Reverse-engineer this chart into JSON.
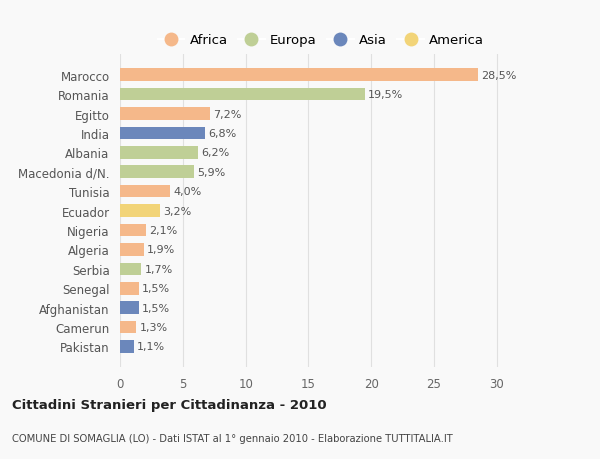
{
  "countries": [
    "Marocco",
    "Romania",
    "Egitto",
    "India",
    "Albania",
    "Macedonia d/N.",
    "Tunisia",
    "Ecuador",
    "Nigeria",
    "Algeria",
    "Serbia",
    "Senegal",
    "Afghanistan",
    "Camerun",
    "Pakistan"
  ],
  "values": [
    28.5,
    19.5,
    7.2,
    6.8,
    6.2,
    5.9,
    4.0,
    3.2,
    2.1,
    1.9,
    1.7,
    1.5,
    1.5,
    1.3,
    1.1
  ],
  "labels": [
    "28,5%",
    "19,5%",
    "7,2%",
    "6,8%",
    "6,2%",
    "5,9%",
    "4,0%",
    "3,2%",
    "2,1%",
    "1,9%",
    "1,7%",
    "1,5%",
    "1,5%",
    "1,3%",
    "1,1%"
  ],
  "continents": [
    "Africa",
    "Europa",
    "Africa",
    "Asia",
    "Europa",
    "Europa",
    "Africa",
    "America",
    "Africa",
    "Africa",
    "Europa",
    "Africa",
    "Asia",
    "Africa",
    "Asia"
  ],
  "continent_colors": {
    "Africa": "#F5B88A",
    "Europa": "#BFCF96",
    "Asia": "#6B87BB",
    "America": "#F2D478"
  },
  "legend_order": [
    "Africa",
    "Europa",
    "Asia",
    "America"
  ],
  "title": "Cittadini Stranieri per Cittadinanza - 2010",
  "subtitle": "COMUNE DI SOMAGLIA (LO) - Dati ISTAT al 1° gennaio 2010 - Elaborazione TUTTITALIA.IT",
  "xlim": [
    0,
    32
  ],
  "xticks": [
    0,
    5,
    10,
    15,
    20,
    25,
    30
  ],
  "background_color": "#f9f9f9",
  "grid_color": "#e0e0e0"
}
